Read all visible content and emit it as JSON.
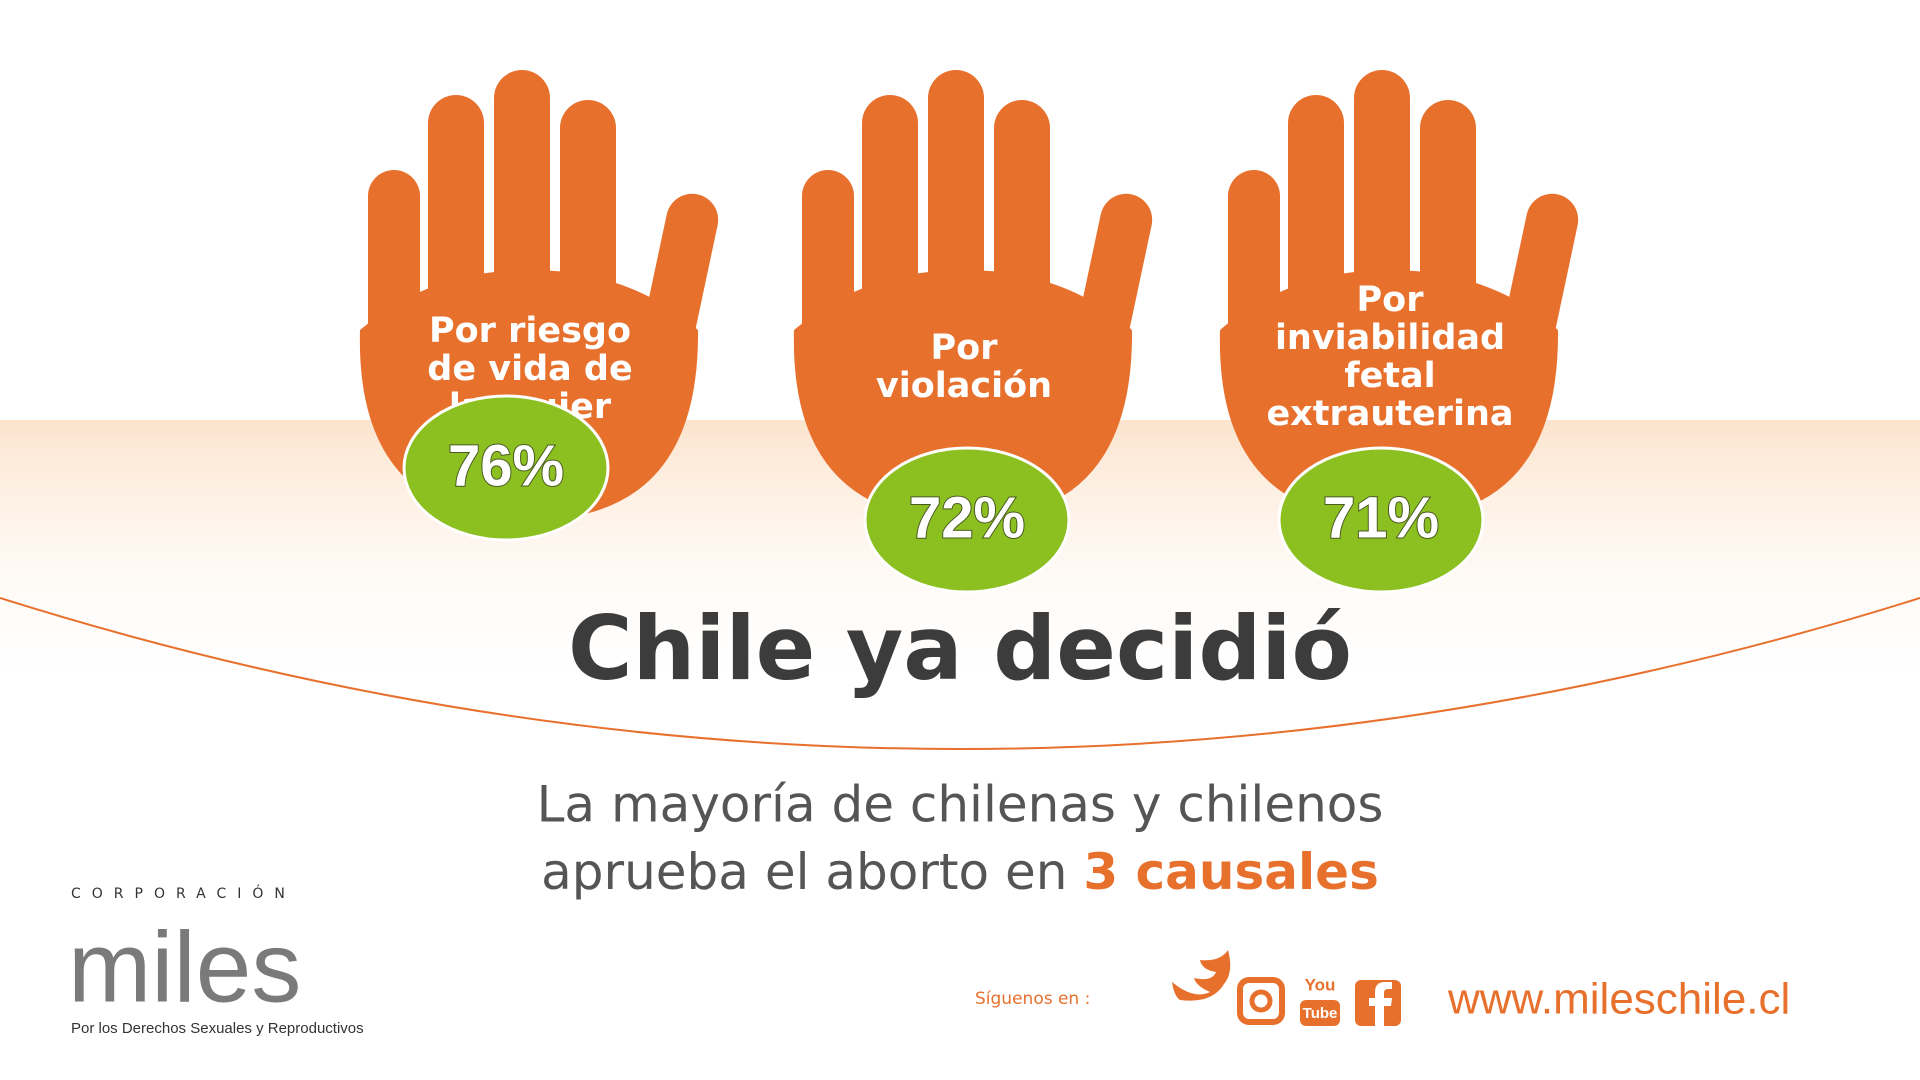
{
  "items": [
    {
      "lines": [
        "Por riesgo",
        "de vida de",
        "la mujer"
      ],
      "value": "76%"
    },
    {
      "lines": [
        "Por",
        "violación"
      ],
      "value": "72%"
    },
    {
      "lines": [
        "Por",
        "inviabilidad",
        "fetal",
        "extrauterina"
      ],
      "value": "71%"
    }
  ],
  "headline": "Chile ya decidió",
  "subtitle": {
    "line1": "La mayoría de chilenas y chilenos",
    "line2": "aprueba el aborto en",
    "highlight": "3 causales"
  },
  "logo": {
    "top": "CORPORACIÓN",
    "name": "miles",
    "tagline": "Por los Derechos Sexuales y Reproductivos"
  },
  "footer": {
    "follow": "Síguenos en :",
    "youtube": [
      "You",
      "Tube"
    ],
    "website": "www.mileschile.cl"
  }
}
